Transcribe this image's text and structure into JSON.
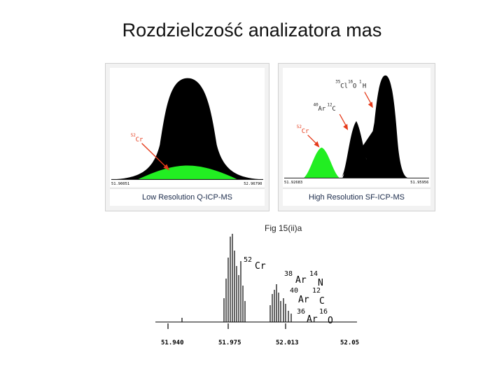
{
  "slide": {
    "title": "Rozdzielczość analizatora mas"
  },
  "low_res": {
    "axis_left": "51.90051",
    "axis_right": "52.96790",
    "caption": "Low Resolution Q-ICP-MS",
    "peak_label_mass": "52",
    "peak_label_elem": "Cr",
    "colors": {
      "interference": "#000000",
      "analyte": "#22ee22",
      "arrow": "#e53a1a"
    }
  },
  "high_res": {
    "axis_left": "51.92683",
    "axis_right": "51.95956",
    "caption": "High Resolution SF-ICP-MS",
    "cr_mass": "52",
    "cr_elem": "Cr",
    "arc_mass1": "40",
    "arc_elem1": "Ar",
    "arc_mass2": "12",
    "arc_elem2": "C",
    "cloh_mass1": "35",
    "cloh_elem1": "Cl",
    "cloh_mass2": "16",
    "cloh_elem2": "O",
    "cloh_mass3": "1",
    "cloh_elem3": "H"
  },
  "fig15": {
    "title": "Fig 15(ii)a",
    "ticks": [
      "51.940",
      "51.975",
      "52.013",
      "52.05"
    ],
    "cr_mass": "52",
    "cr_elem": "Cr",
    "arn_mass1": "38",
    "arn_elem1": "Ar",
    "arn_mass2": "14",
    "arn_elem2": "N",
    "arc_mass1": "40",
    "arc_elem1": "Ar",
    "arc_mass2": "12",
    "arc_elem2": "C",
    "aro_mass1": "36",
    "aro_elem1": "Ar",
    "aro_mass2": "16",
    "aro_elem2": "O"
  }
}
